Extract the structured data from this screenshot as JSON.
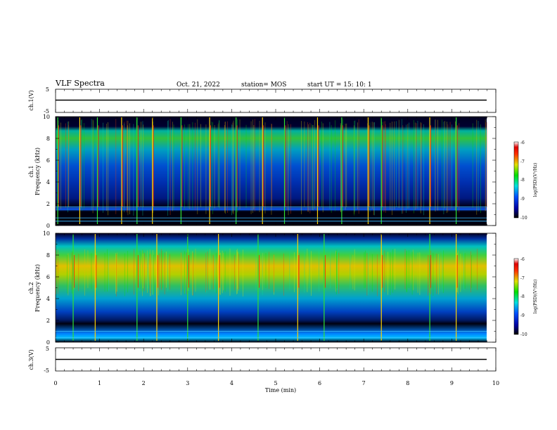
{
  "header": {
    "title": "VLF Spectra",
    "date": "Oct. 21, 2022",
    "station": "station= MOS",
    "start": "start  UT =  15: 10: 1"
  },
  "chart_data": [
    {
      "type": "line",
      "panel": "ch1-waveform",
      "ylabel": "ch.1(V)",
      "ylim": [
        -5,
        5
      ],
      "yticks": [
        "5",
        "-5"
      ],
      "xlim": [
        0,
        10
      ],
      "series": [
        {
          "values": [
            [
              0,
              -1.2
            ],
            [
              10,
              -1.2
            ]
          ]
        }
      ]
    },
    {
      "type": "heatmap",
      "panel": "ch1-spectrogram",
      "ylabel_top": "ch.1",
      "ylabel": "Frequency (kHz)",
      "ylim": [
        0,
        10
      ],
      "yticks": [
        "0",
        "2",
        "4",
        "6",
        "8",
        "10"
      ],
      "xlim": [
        0,
        9.8
      ],
      "colorbar": {
        "label": "log(PSD)(V²/Hz)",
        "range": [
          -10,
          -6
        ],
        "ticks": [
          "-6",
          "-7",
          "-8",
          "-9",
          "-10"
        ]
      },
      "strong_band_khz": [
        1.7,
        9.2
      ],
      "spike_times_min": [
        0.05,
        0.55,
        0.95,
        1.5,
        1.85,
        2.2,
        2.85,
        3.5,
        4.1,
        4.7,
        5.2,
        5.95,
        6.5,
        7.1,
        7.4,
        8.5,
        9.1
      ]
    },
    {
      "type": "heatmap",
      "panel": "ch2-spectrogram",
      "ylabel_top": "ch.2",
      "ylabel": "Frequency (kHz)",
      "ylim": [
        0,
        10
      ],
      "yticks": [
        "0",
        "2",
        "4",
        "6",
        "8",
        "10"
      ],
      "xlim": [
        0,
        9.8
      ],
      "colorbar": {
        "label": "log(PSD)(V²/Hz)",
        "range": [
          -10,
          -6
        ],
        "ticks": [
          "-6",
          "-7",
          "-8",
          "-9",
          "-10"
        ]
      },
      "strong_band_khz": [
        5.0,
        8.0
      ],
      "spike_times_min": [
        0.4,
        0.9,
        1.85,
        2.3,
        3.0,
        3.7,
        4.6,
        5.5,
        6.1,
        7.4,
        8.5,
        9.1
      ]
    },
    {
      "type": "line",
      "panel": "ch3-waveform",
      "ylabel": "ch.3(V)",
      "ylim": [
        -5,
        5
      ],
      "yticks": [
        "5",
        "-5"
      ],
      "xlim": [
        0,
        10
      ],
      "series": [
        {
          "values": [
            [
              0,
              -1.2
            ],
            [
              10,
              -1.2
            ]
          ]
        }
      ]
    }
  ],
  "xaxis": {
    "label": "Time  (min)",
    "ticks": [
      "0",
      "1",
      "2",
      "3",
      "4",
      "5",
      "6",
      "7",
      "8",
      "9",
      "10"
    ]
  }
}
